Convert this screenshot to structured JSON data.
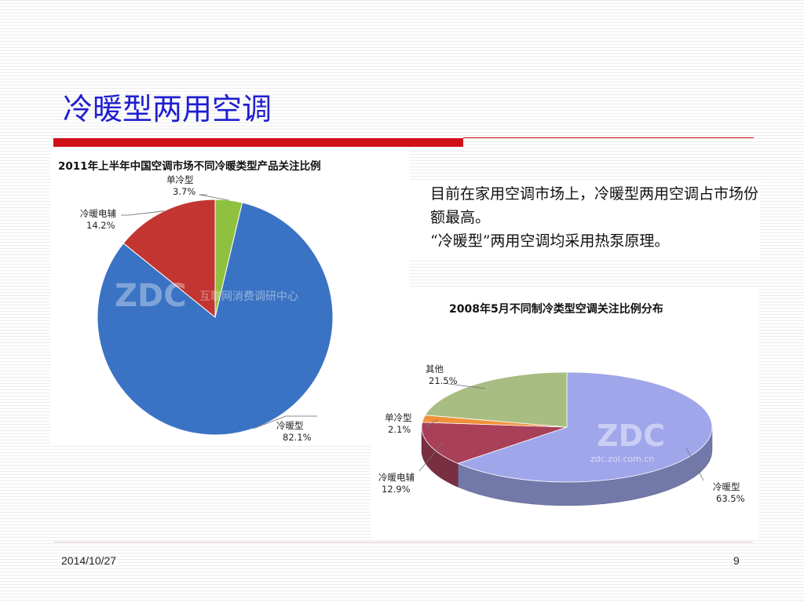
{
  "slide": {
    "title": "冷暖型两用空调",
    "footer_date": "2014/10/27",
    "page_number": "9"
  },
  "note": {
    "paragraphs": [
      "目前在家用空调市场上，冷暖型两用空调占市场份额最高。",
      "“冷暖型”两用空调均采用热泵原理。"
    ]
  },
  "chart_data": [
    {
      "type": "pie",
      "title": "2011年上半年中国空调市场不同冷暖类型产品关注比例",
      "watermark": "ZDC",
      "watermark_sub": "互联网消费调研中心",
      "slices": [
        {
          "label": "单冷型",
          "value": 3.7,
          "value_label": "3.7%",
          "color": "#8fc13e"
        },
        {
          "label": "冷暖型",
          "value": 82.1,
          "value_label": "82.1%",
          "color": "#3b73c4"
        },
        {
          "label": "冷暖电辅",
          "value": 14.2,
          "value_label": "14.2%",
          "color": "#c23531"
        }
      ]
    },
    {
      "type": "pie",
      "title": "2008年5月不同制冷类型空调关注比例分布",
      "watermark": "ZDC",
      "watermark_sub": "zdc.zol.com.cn",
      "slices": [
        {
          "label": "冷暖型",
          "value": 63.5,
          "value_label": "63.5%",
          "color": "#9fa6ea"
        },
        {
          "label": "冷暖电辅",
          "value": 12.9,
          "value_label": "12.9%",
          "color": "#a8405a"
        },
        {
          "label": "单冷型",
          "value": 2.1,
          "value_label": "2.1%",
          "color": "#f0923a"
        },
        {
          "label": "其他",
          "value": 21.5,
          "value_label": "21.5%",
          "color": "#a8bd82"
        }
      ]
    }
  ]
}
